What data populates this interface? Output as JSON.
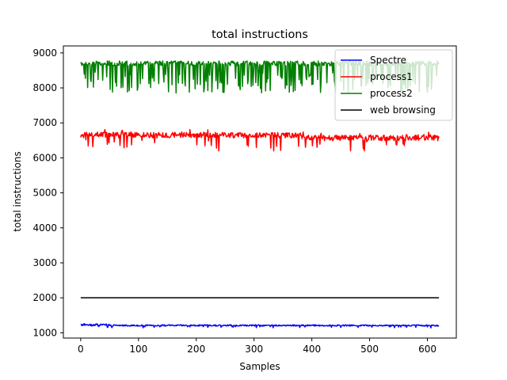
{
  "chart_data": {
    "type": "line",
    "title": "total instructions",
    "xlabel": "Samples",
    "ylabel": "total instructions",
    "xlim": [
      -30,
      650
    ],
    "ylim": [
      850,
      9200
    ],
    "xticks": [
      0,
      100,
      200,
      300,
      400,
      500,
      600
    ],
    "yticks": [
      1000,
      2000,
      3000,
      4000,
      5000,
      6000,
      7000,
      8000,
      9000
    ],
    "grid": false,
    "legend_position": "top-right",
    "x_range": [
      0,
      620
    ],
    "series": [
      {
        "name": "Spectre",
        "color": "#0000ff",
        "baseline": 1210,
        "approx_min": 1140,
        "approx_max": 1280
      },
      {
        "name": "process1",
        "color": "#ff0000",
        "baseline": 6630,
        "approx_min": 6200,
        "approx_max": 6850
      },
      {
        "name": "process2",
        "color": "#008000",
        "baseline": 8500,
        "approx_min": 7800,
        "approx_max": 8820
      },
      {
        "name": "web browsing",
        "color": "#000000",
        "baseline": 2000,
        "approx_min": 2000,
        "approx_max": 2000
      }
    ]
  }
}
